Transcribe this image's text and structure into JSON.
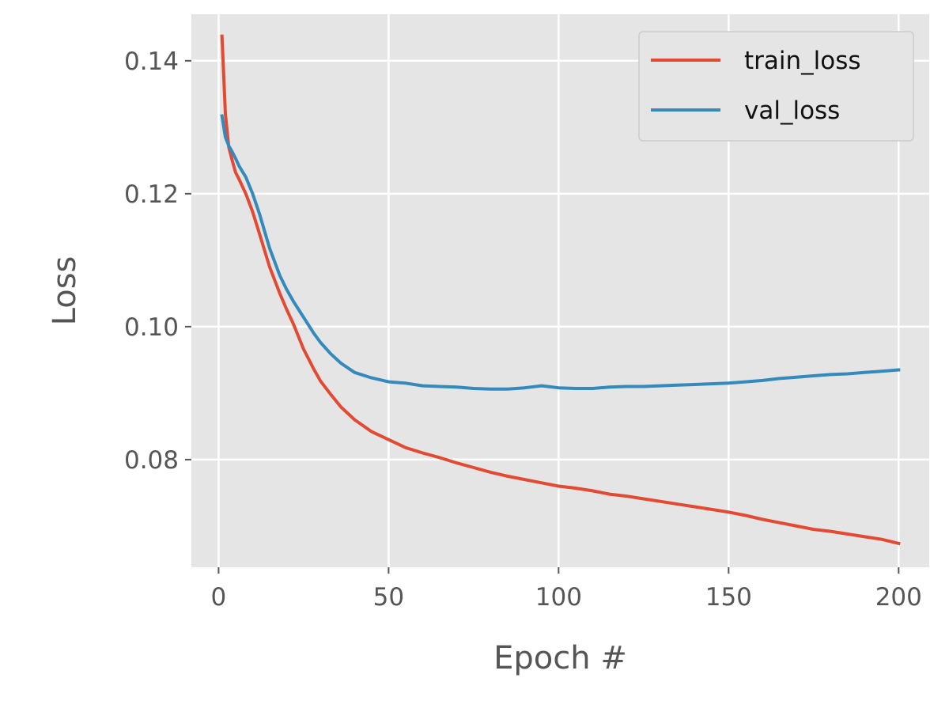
{
  "chart_data": {
    "type": "line",
    "title": "",
    "xlabel": "Epoch #",
    "ylabel": "Loss",
    "xlim": [
      -8,
      209
    ],
    "ylim": [
      0.0638,
      0.147
    ],
    "grid": true,
    "legend_position": "top-right",
    "x_ticks": [
      {
        "value": 0,
        "label": "0"
      },
      {
        "value": 50,
        "label": "50"
      },
      {
        "value": 100,
        "label": "100"
      },
      {
        "value": 150,
        "label": "150"
      },
      {
        "value": 200,
        "label": "200"
      }
    ],
    "y_ticks": [
      {
        "value": 0.08,
        "label": "0.08"
      },
      {
        "value": 0.1,
        "label": "0.10"
      },
      {
        "value": 0.12,
        "label": "0.12"
      },
      {
        "value": 0.14,
        "label": "0.14"
      }
    ],
    "x": [
      1,
      2,
      3,
      4,
      5,
      6,
      8,
      10,
      12,
      15,
      18,
      20,
      22,
      25,
      28,
      30,
      33,
      36,
      40,
      45,
      50,
      55,
      60,
      65,
      70,
      75,
      80,
      85,
      90,
      95,
      100,
      105,
      110,
      115,
      120,
      125,
      130,
      135,
      140,
      145,
      150,
      155,
      160,
      165,
      170,
      175,
      180,
      185,
      190,
      195,
      200
    ],
    "series": [
      {
        "name": "train_loss",
        "color": "#E24A33",
        "values": [
          0.1437,
          0.132,
          0.127,
          0.125,
          0.1232,
          0.1222,
          0.12,
          0.1173,
          0.114,
          0.109,
          0.105,
          0.1026,
          0.1004,
          0.0966,
          0.0936,
          0.0918,
          0.0898,
          0.0879,
          0.086,
          0.0842,
          0.083,
          0.0818,
          0.081,
          0.0803,
          0.0795,
          0.0788,
          0.0781,
          0.0775,
          0.077,
          0.0765,
          0.076,
          0.0757,
          0.0753,
          0.0748,
          0.0745,
          0.0741,
          0.0737,
          0.0733,
          0.0729,
          0.0725,
          0.0721,
          0.0716,
          0.071,
          0.0705,
          0.07,
          0.0695,
          0.0692,
          0.0688,
          0.0684,
          0.068,
          0.0674
        ]
      },
      {
        "name": "val_loss",
        "color": "#348ABD",
        "values": [
          0.1317,
          0.1285,
          0.1272,
          0.1263,
          0.1253,
          0.1242,
          0.1225,
          0.12,
          0.117,
          0.1118,
          0.1077,
          0.1056,
          0.1038,
          0.1014,
          0.099,
          0.0976,
          0.0959,
          0.0945,
          0.0931,
          0.0923,
          0.0917,
          0.0915,
          0.0911,
          0.091,
          0.0909,
          0.0907,
          0.0906,
          0.0906,
          0.0908,
          0.0911,
          0.0908,
          0.0907,
          0.0907,
          0.0909,
          0.091,
          0.091,
          0.0911,
          0.0912,
          0.0913,
          0.0914,
          0.0915,
          0.0917,
          0.0919,
          0.0922,
          0.0924,
          0.0926,
          0.0928,
          0.0929,
          0.0931,
          0.0933,
          0.0935
        ]
      }
    ]
  },
  "theme": {
    "plot_background": "#E5E5E5",
    "grid_color": "#FFFFFF",
    "tick_color": "#555555"
  }
}
